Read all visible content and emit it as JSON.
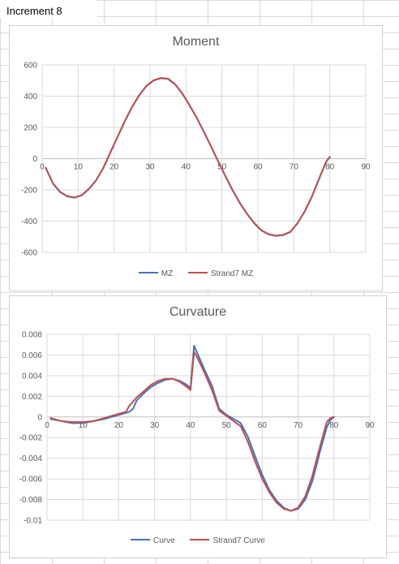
{
  "sheet": {
    "title": "Increment 8"
  },
  "colors": {
    "series1": "#4472C4",
    "series2": "#C0504D",
    "grid": "#d9d9d9",
    "zero_axis": "#bfbfbf"
  },
  "chart_data": [
    {
      "type": "line",
      "title": "Moment",
      "xlabel": "",
      "ylabel": "",
      "xlim": [
        0,
        90
      ],
      "ylim": [
        -600,
        600
      ],
      "xticks": [
        0,
        10,
        20,
        30,
        40,
        50,
        60,
        70,
        80,
        90
      ],
      "yticks": [
        -600,
        -400,
        -200,
        0,
        200,
        400,
        600
      ],
      "xtick_labels": [
        "0",
        "10",
        "20",
        "30",
        "40",
        "50",
        "60",
        "70",
        "80",
        "90"
      ],
      "ytick_labels": [
        "-600",
        "-400",
        "-200",
        "0",
        "200",
        "400",
        "600"
      ],
      "grid": true,
      "legend_position": "bottom",
      "x": [
        1,
        3,
        5,
        7,
        9,
        11,
        13,
        15,
        17,
        19,
        21,
        23,
        25,
        27,
        29,
        31,
        33,
        35,
        37,
        39,
        41,
        43,
        45,
        47,
        49,
        51,
        53,
        55,
        57,
        59,
        61,
        63,
        65,
        67,
        69,
        71,
        73,
        75,
        77,
        79,
        80
      ],
      "series": [
        {
          "name": "MZ",
          "color": "#4472C4",
          "values": [
            -60,
            -160,
            -215,
            -242,
            -250,
            -235,
            -195,
            -140,
            -60,
            40,
            140,
            240,
            330,
            405,
            465,
            500,
            515,
            510,
            475,
            415,
            340,
            260,
            170,
            75,
            -20,
            -115,
            -205,
            -285,
            -355,
            -415,
            -460,
            -485,
            -495,
            -490,
            -470,
            -415,
            -340,
            -245,
            -130,
            -20,
            10
          ]
        },
        {
          "name": "Strand7 MZ",
          "color": "#C0504D",
          "values": [
            -58,
            -158,
            -213,
            -240,
            -248,
            -233,
            -193,
            -138,
            -58,
            42,
            142,
            242,
            332,
            407,
            467,
            502,
            517,
            512,
            477,
            417,
            342,
            262,
            172,
            77,
            -18,
            -113,
            -203,
            -283,
            -353,
            -413,
            -458,
            -483,
            -493,
            -488,
            -468,
            -413,
            -338,
            -243,
            -128,
            -18,
            12
          ]
        }
      ]
    },
    {
      "type": "line",
      "title": "Curvature",
      "xlabel": "",
      "ylabel": "",
      "xlim": [
        0,
        90
      ],
      "ylim": [
        -0.01,
        0.008
      ],
      "xticks": [
        0,
        10,
        20,
        30,
        40,
        50,
        60,
        70,
        80,
        90
      ],
      "yticks": [
        -0.01,
        -0.008,
        -0.006,
        -0.004,
        -0.002,
        0,
        0.002,
        0.004,
        0.006,
        0.008
      ],
      "xtick_labels": [
        "0",
        "10",
        "20",
        "30",
        "40",
        "50",
        "60",
        "70",
        "80",
        "90"
      ],
      "ytick_labels": [
        "-0.01",
        "-0.008",
        "-0.006",
        "-0.004",
        "-0.002",
        "0",
        "0.002",
        "0.004",
        "0.006",
        "0.008"
      ],
      "grid": true,
      "legend_position": "bottom",
      "series": [
        {
          "name": "Curve",
          "color": "#4472C4",
          "x": [
            1,
            4,
            7,
            10,
            13,
            16,
            19,
            21,
            23,
            24,
            25,
            27,
            29,
            31,
            33,
            35,
            37,
            39,
            40,
            41,
            42,
            44,
            46,
            48,
            50,
            52,
            54,
            56,
            58,
            60,
            62,
            64,
            66,
            68,
            70,
            72,
            74,
            76,
            78,
            79,
            80
          ],
          "values": [
            -0.0002,
            -0.0004,
            -0.0006,
            -0.0006,
            -0.0004,
            -0.0002,
            0.0001,
            0.0003,
            0.0005,
            0.0008,
            0.0016,
            0.0023,
            0.0029,
            0.0033,
            0.0036,
            0.0037,
            0.0035,
            0.0031,
            0.0028,
            0.0069,
            0.0061,
            0.0045,
            0.003,
            0.0008,
            0.0002,
            -0.0002,
            -0.0006,
            -0.0019,
            -0.0038,
            -0.0056,
            -0.0071,
            -0.0081,
            -0.0088,
            -0.0091,
            -0.0089,
            -0.008,
            -0.0062,
            -0.0035,
            -0.001,
            -0.0003,
            0.0
          ]
        },
        {
          "name": "Strand7 Curve",
          "color": "#C0504D",
          "x": [
            1,
            4,
            7,
            10,
            13,
            16,
            19,
            21,
            22,
            23,
            25,
            27,
            29,
            31,
            33,
            35,
            37,
            39,
            40,
            41,
            42,
            44,
            46,
            48,
            50,
            52,
            54,
            56,
            58,
            60,
            62,
            64,
            66,
            68,
            70,
            72,
            74,
            76,
            78,
            79,
            80
          ],
          "values": [
            -0.0001,
            -0.0004,
            -0.0005,
            -0.0005,
            -0.0004,
            -0.0001,
            0.0002,
            0.0004,
            0.0005,
            0.0011,
            0.0019,
            0.0025,
            0.0031,
            0.0035,
            0.0037,
            0.0037,
            0.0034,
            0.0029,
            0.0026,
            0.0063,
            0.0057,
            0.0042,
            0.0026,
            0.0006,
            0.0001,
            -0.0004,
            -0.0009,
            -0.0024,
            -0.0043,
            -0.006,
            -0.0073,
            -0.0083,
            -0.0089,
            -0.0091,
            -0.0088,
            -0.0077,
            -0.0057,
            -0.003,
            -0.0005,
            -0.0001,
            0.0
          ]
        }
      ]
    }
  ]
}
